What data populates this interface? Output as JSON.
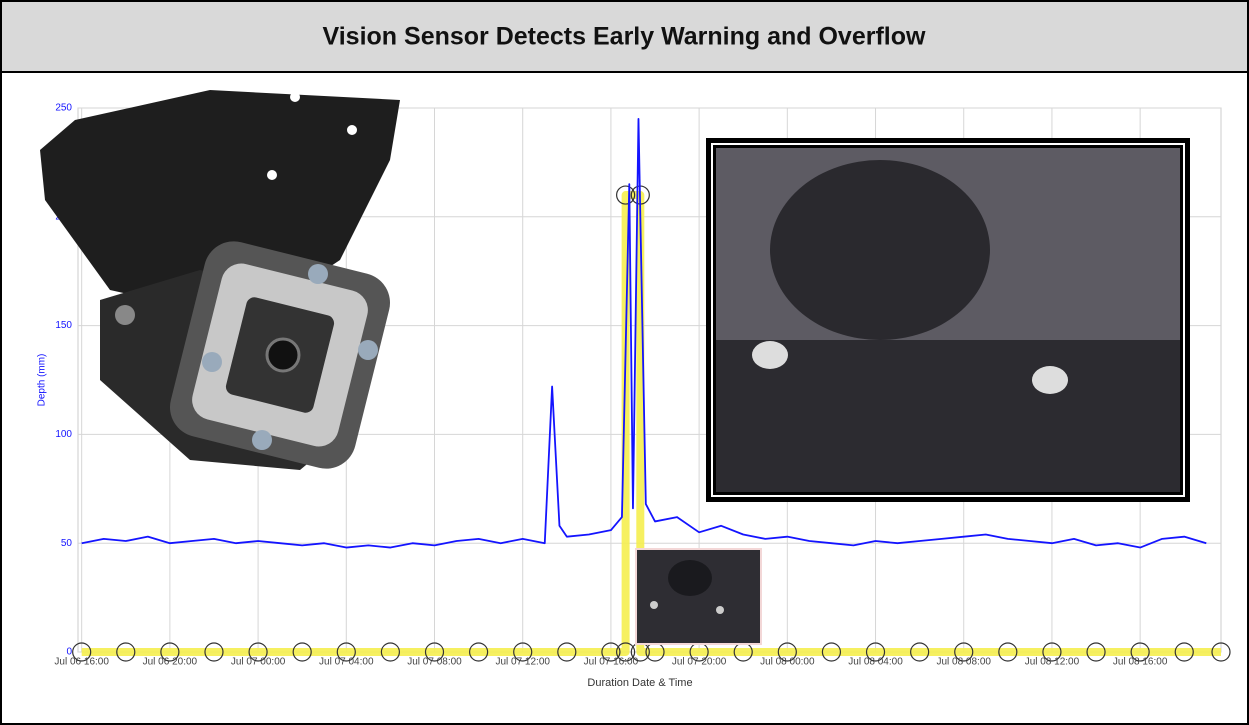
{
  "chart_data": {
    "type": "line",
    "title": "Vision Sensor Detects Early Warning and Overflow",
    "y_label": "Depth (mm)",
    "x_label": "Duration Date & Time",
    "ylim": [
      0,
      250
    ],
    "yticks": [
      0,
      50,
      100,
      150,
      200,
      250
    ],
    "xlim": [
      "Jul 06 15:50",
      "Jul 08 19:40"
    ],
    "xticks": [
      "Jul 06 16:00",
      "Jul 06 20:00",
      "Jul 07 00:00",
      "Jul 07 04:00",
      "Jul 07 08:00",
      "Jul 07 12:00",
      "Jul 07 16:00",
      "Jul 07 20:00",
      "Jul 08 00:00",
      "Jul 08 04:00",
      "Jul 08 08:00",
      "Jul 08 12:00",
      "Jul 08 16:00"
    ],
    "grid": true,
    "series": [
      {
        "color": "#1414ff",
        "x": [
          "Jul 06 16:00",
          "Jul 06 17:00",
          "Jul 06 18:00",
          "Jul 06 19:00",
          "Jul 06 20:00",
          "Jul 06 21:00",
          "Jul 06 22:00",
          "Jul 06 23:00",
          "Jul 07 00:00",
          "Jul 07 01:00",
          "Jul 07 02:00",
          "Jul 07 03:00",
          "Jul 07 04:00",
          "Jul 07 05:00",
          "Jul 07 06:00",
          "Jul 07 07:00",
          "Jul 07 08:00",
          "Jul 07 09:00",
          "Jul 07 10:00",
          "Jul 07 11:00",
          "Jul 07 12:00",
          "Jul 07 13:00",
          "Jul 07 13:20",
          "Jul 07 13:40",
          "Jul 07 14:00",
          "Jul 07 15:00",
          "Jul 07 16:00",
          "Jul 07 16:30",
          "Jul 07 16:50",
          "Jul 07 17:00",
          "Jul 07 17:15",
          "Jul 07 17:35",
          "Jul 07 18:00",
          "Jul 07 19:00",
          "Jul 07 20:00",
          "Jul 07 21:00",
          "Jul 07 22:00",
          "Jul 07 23:00",
          "Jul 08 00:00",
          "Jul 08 01:00",
          "Jul 08 02:00",
          "Jul 08 03:00",
          "Jul 08 04:00",
          "Jul 08 05:00",
          "Jul 08 06:00",
          "Jul 08 07:00",
          "Jul 08 08:00",
          "Jul 08 09:00",
          "Jul 08 10:00",
          "Jul 08 11:00",
          "Jul 08 12:00",
          "Jul 08 13:00",
          "Jul 08 14:00",
          "Jul 08 15:00",
          "Jul 08 16:00",
          "Jul 08 17:00",
          "Jul 08 18:00",
          "Jul 08 19:00"
        ],
        "values": [
          50,
          52,
          51,
          53,
          50,
          51,
          52,
          50,
          51,
          50,
          49,
          50,
          48,
          49,
          48,
          50,
          49,
          51,
          52,
          50,
          52,
          50,
          122,
          58,
          53,
          54,
          56,
          62,
          215,
          66,
          245,
          68,
          60,
          62,
          55,
          58,
          54,
          52,
          53,
          51,
          50,
          49,
          51,
          50,
          51,
          52,
          53,
          54,
          52,
          51,
          50,
          52,
          49,
          50,
          48,
          52,
          53,
          50
        ]
      },
      {
        "color": "#f5ee4f",
        "marker": "circle",
        "x": [
          "Jul 06 16:00",
          "Jul 06 18:00",
          "Jul 06 20:00",
          "Jul 06 22:00",
          "Jul 07 00:00",
          "Jul 07 02:00",
          "Jul 07 04:00",
          "Jul 07 06:00",
          "Jul 07 08:00",
          "Jul 07 10:00",
          "Jul 07 12:00",
          "Jul 07 14:00",
          "Jul 07 16:00",
          "Jul 07 16:40",
          "Jul 07 16:40",
          "Jul 07 17:20",
          "Jul 07 17:20",
          "Jul 07 18:00",
          "Jul 07 20:00",
          "Jul 07 22:00",
          "Jul 08 00:00",
          "Jul 08 02:00",
          "Jul 08 04:00",
          "Jul 08 06:00",
          "Jul 08 08:00",
          "Jul 08 10:00",
          "Jul 08 12:00",
          "Jul 08 14:00",
          "Jul 08 16:00",
          "Jul 08 18:00",
          "Jul 08 19:40"
        ],
        "values": [
          0,
          0,
          0,
          0,
          0,
          0,
          0,
          0,
          0,
          0,
          0,
          0,
          0,
          0,
          210,
          210,
          0,
          0,
          0,
          0,
          0,
          0,
          0,
          0,
          0,
          0,
          0,
          0,
          0,
          0,
          0
        ]
      }
    ]
  }
}
